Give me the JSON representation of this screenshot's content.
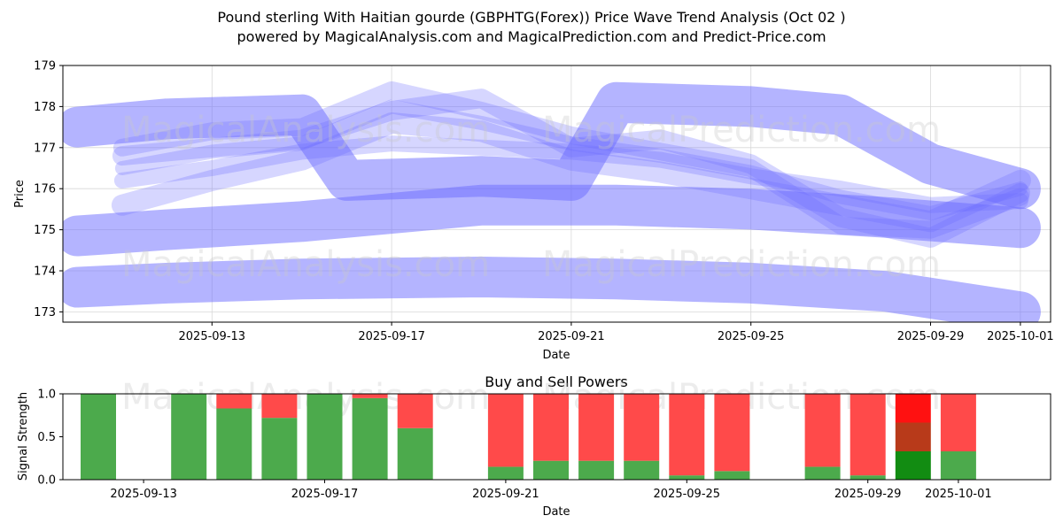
{
  "header": {
    "title_line1": "Pound sterling With Haitian gourde (GBPHTG(Forex)) Price Wave Trend Analysis (Oct 02 )",
    "title_line2": "powered by MagicalAnalysis.com and MagicalPrediction.com and Predict-Price.com"
  },
  "watermarks": {
    "analysis": "MagicalAnalysis.com",
    "prediction": "MagicalPrediction.com"
  },
  "colors": {
    "band": "#6a6aff",
    "buy": "#4caa4c",
    "sell": "#ff4a4a",
    "buy_strong": "#128c12",
    "sell_strong": "#ff1111",
    "sell_mid": "#b83a1a"
  },
  "chart_data": [
    {
      "type": "area",
      "title": "",
      "xlabel": "Date",
      "ylabel": "Price",
      "xlim": [
        "2025-09-10",
        "2025-10-02"
      ],
      "ylim": [
        172.75,
        179.0
      ],
      "grid": true,
      "x_ticks": [
        "2025-09-13",
        "2025-09-17",
        "2025-09-21",
        "2025-09-25",
        "2025-09-29",
        "2025-10-01"
      ],
      "y_ticks": [
        173,
        174,
        175,
        176,
        177,
        178,
        179
      ],
      "wide_bands": [
        {
          "x": [
            "2025-09-10",
            "2025-09-12",
            "2025-09-15",
            "2025-09-19",
            "2025-09-22",
            "2025-09-25",
            "2025-09-28",
            "2025-10-01"
          ],
          "y": [
            173.6,
            173.7,
            173.8,
            173.85,
            173.8,
            173.7,
            173.5,
            173.0
          ]
        },
        {
          "x": [
            "2025-09-10",
            "2025-09-12",
            "2025-09-15",
            "2025-09-19",
            "2025-09-22",
            "2025-09-25",
            "2025-09-28",
            "2025-10-01"
          ],
          "y": [
            174.85,
            175.0,
            175.2,
            175.6,
            175.6,
            175.5,
            175.3,
            175.05
          ]
        },
        {
          "x": [
            "2025-09-10",
            "2025-09-12",
            "2025-09-15",
            "2025-09-16",
            "2025-09-19",
            "2025-09-21",
            "2025-09-22",
            "2025-09-25",
            "2025-09-27",
            "2025-09-29",
            "2025-10-01"
          ],
          "y": [
            177.5,
            177.7,
            177.8,
            176.2,
            176.3,
            176.2,
            178.1,
            178.0,
            177.8,
            176.6,
            176.0
          ]
        }
      ],
      "paths": [
        {
          "x": [
            "2025-09-11",
            "2025-09-13",
            "2025-09-15",
            "2025-09-17",
            "2025-09-19",
            "2025-09-21",
            "2025-09-23",
            "2025-09-25",
            "2025-09-27",
            "2025-09-29",
            "2025-10-01"
          ],
          "y": [
            177.0,
            177.4,
            177.5,
            178.4,
            177.9,
            177.3,
            176.9,
            176.5,
            175.1,
            175.0,
            175.8
          ]
        },
        {
          "x": [
            "2025-09-11",
            "2025-09-13",
            "2025-09-15",
            "2025-09-17",
            "2025-09-19",
            "2025-09-21",
            "2025-09-23",
            "2025-09-25",
            "2025-09-27",
            "2025-09-29",
            "2025-10-01"
          ],
          "y": [
            176.8,
            177.0,
            177.2,
            177.9,
            178.2,
            177.0,
            177.2,
            176.6,
            175.3,
            174.8,
            175.9
          ]
        },
        {
          "x": [
            "2025-09-11",
            "2025-09-13",
            "2025-09-15",
            "2025-09-17",
            "2025-09-19",
            "2025-09-21",
            "2025-09-23",
            "2025-09-25",
            "2025-09-27",
            "2025-09-29",
            "2025-10-01"
          ],
          "y": [
            176.2,
            176.5,
            176.9,
            177.1,
            177.0,
            176.9,
            176.7,
            176.3,
            176.0,
            175.6,
            175.7
          ]
        },
        {
          "x": [
            "2025-09-11",
            "2025-09-13",
            "2025-09-15",
            "2025-09-17",
            "2025-09-19",
            "2025-09-21",
            "2025-09-23",
            "2025-09-25",
            "2025-09-27",
            "2025-09-29",
            "2025-10-01"
          ],
          "y": [
            175.6,
            176.2,
            176.7,
            177.6,
            177.4,
            176.7,
            176.4,
            176.0,
            175.6,
            175.2,
            176.2
          ]
        },
        {
          "x": [
            "2025-09-11",
            "2025-09-13",
            "2025-09-15",
            "2025-09-17",
            "2025-09-19",
            "2025-09-21",
            "2025-09-23",
            "2025-09-25",
            "2025-09-27",
            "2025-09-29",
            "2025-10-01"
          ],
          "y": [
            176.5,
            176.9,
            177.1,
            178.0,
            177.6,
            177.1,
            176.8,
            176.4,
            175.8,
            175.4,
            176.0
          ]
        }
      ]
    },
    {
      "type": "bar",
      "title": "Buy and Sell Powers",
      "xlabel": "Date",
      "ylabel": "Signal Strength",
      "ylim": [
        0,
        1
      ],
      "y_ticks": [
        "0.0",
        "0.5",
        "1.0"
      ],
      "x_ticks": [
        "2025-09-13",
        "2025-09-17",
        "2025-09-21",
        "2025-09-25",
        "2025-09-29",
        "2025-10-01"
      ],
      "categories": [
        "2025-09-12",
        "2025-09-13",
        "2025-09-14",
        "2025-09-15",
        "2025-09-16",
        "2025-09-17",
        "2025-09-18",
        "2025-09-19",
        "2025-09-20",
        "2025-09-21",
        "2025-09-22",
        "2025-09-23",
        "2025-09-24",
        "2025-09-25",
        "2025-09-26",
        "2025-09-27",
        "2025-09-28",
        "2025-09-29",
        "2025-09-30",
        "2025-10-01"
      ],
      "series": [
        {
          "name": "Buy",
          "values": [
            1.0,
            0,
            1.0,
            0.83,
            0.72,
            1.0,
            0.95,
            0.6,
            0,
            0.15,
            0.22,
            0.22,
            0.22,
            0.05,
            0.1,
            0,
            0.15,
            0.05,
            0.33,
            0.33
          ]
        },
        {
          "name": "Sell",
          "values": [
            0,
            0,
            0,
            0.17,
            0.28,
            0,
            0.05,
            0.4,
            0,
            0.85,
            0.78,
            0.78,
            0.78,
            0.95,
            0.9,
            0,
            0.85,
            0.95,
            0.67,
            0.67
          ]
        }
      ],
      "strong": [
        false,
        false,
        false,
        false,
        false,
        false,
        false,
        false,
        false,
        false,
        false,
        false,
        false,
        false,
        false,
        false,
        false,
        false,
        true,
        false
      ]
    }
  ]
}
